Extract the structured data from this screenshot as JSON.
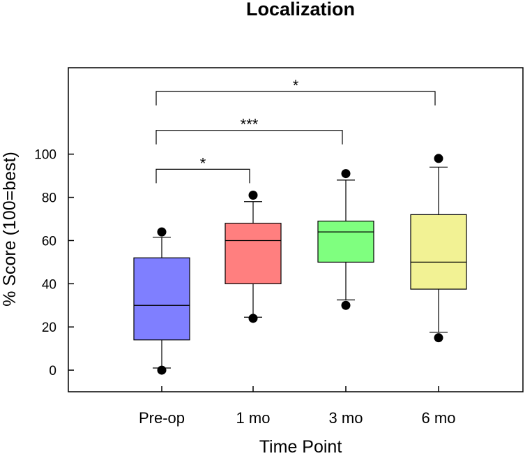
{
  "chart_data": {
    "type": "boxplot",
    "title": "Localization",
    "xlabel": "Time Point",
    "ylabel": "% Score (100=best)",
    "ylim": [
      -10,
      140
    ],
    "yticks": [
      0,
      20,
      40,
      60,
      80,
      100
    ],
    "categories": [
      "Pre-op",
      "1 mo",
      "3 mo",
      "6 mo"
    ],
    "boxes": [
      {
        "name": "Pre-op",
        "q1": 14,
        "median": 30,
        "q3": 52,
        "whisker_low": 1,
        "whisker_high": 61.5,
        "outliers": [
          0,
          64
        ],
        "color": "#7F7FFF"
      },
      {
        "name": "1 mo",
        "q1": 40,
        "median": 60,
        "q3": 68,
        "whisker_low": 24.5,
        "whisker_high": 78,
        "outliers": [
          24,
          81
        ],
        "color": "#FF7F7F"
      },
      {
        "name": "3 mo",
        "q1": 50,
        "median": 64,
        "q3": 69,
        "whisker_low": 32.5,
        "whisker_high": 88,
        "outliers": [
          30,
          91
        ],
        "color": "#7FFF7F"
      },
      {
        "name": "6 mo",
        "q1": 37.5,
        "median": 50,
        "q3": 72,
        "whisker_low": 17.5,
        "whisker_high": 94,
        "outliers": [
          15,
          98
        ],
        "color": "#F2F294"
      }
    ],
    "significance": [
      {
        "from": 0,
        "to": 1,
        "label": "*",
        "level": 93
      },
      {
        "from": 0,
        "to": 2,
        "label": "***",
        "level": 111
      },
      {
        "from": 0,
        "to": 3,
        "label": "*",
        "level": 129
      }
    ]
  }
}
